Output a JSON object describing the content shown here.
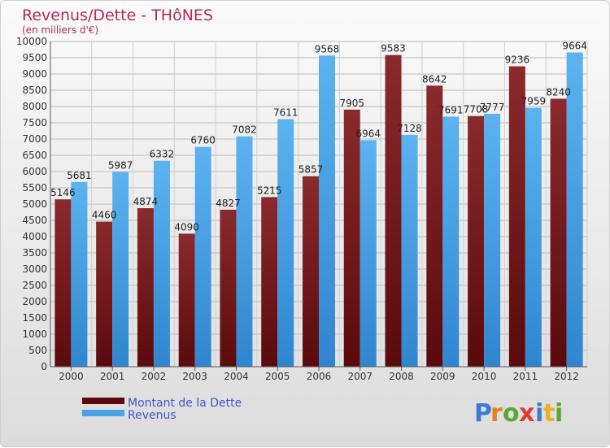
{
  "chart_data": {
    "type": "bar",
    "title": "Revenus/Dette - THôNES",
    "subtitle": "(en milliers d'€)",
    "categories": [
      "2000",
      "2001",
      "2002",
      "2003",
      "2004",
      "2005",
      "2006",
      "2007",
      "2008",
      "2009",
      "2010",
      "2011",
      "2012"
    ],
    "series": [
      {
        "name": "Montant de la Dette",
        "color": "#7a1a1d",
        "values": [
          5146,
          4460,
          4874,
          4090,
          4827,
          5215,
          5857,
          7905,
          9583,
          8642,
          7708,
          9236,
          8240
        ]
      },
      {
        "name": "Revenus",
        "color": "#4aa3e6",
        "values": [
          5681,
          5987,
          6332,
          6760,
          7082,
          7611,
          9568,
          6964,
          7128,
          7691,
          7777,
          7959,
          9664
        ]
      }
    ],
    "ylim": [
      0,
      10000
    ],
    "ytick_step": 500,
    "grid": true,
    "legend_position": "bottom-left"
  },
  "logo": {
    "letters": [
      "P",
      "r",
      "o",
      "x",
      "i",
      "t",
      "i"
    ],
    "colors": [
      "#3b7bd1",
      "#e8801f",
      "#5aa832",
      "#e23a2e",
      "#3b7bd1",
      "#e8b21f",
      "#5aa832"
    ]
  }
}
